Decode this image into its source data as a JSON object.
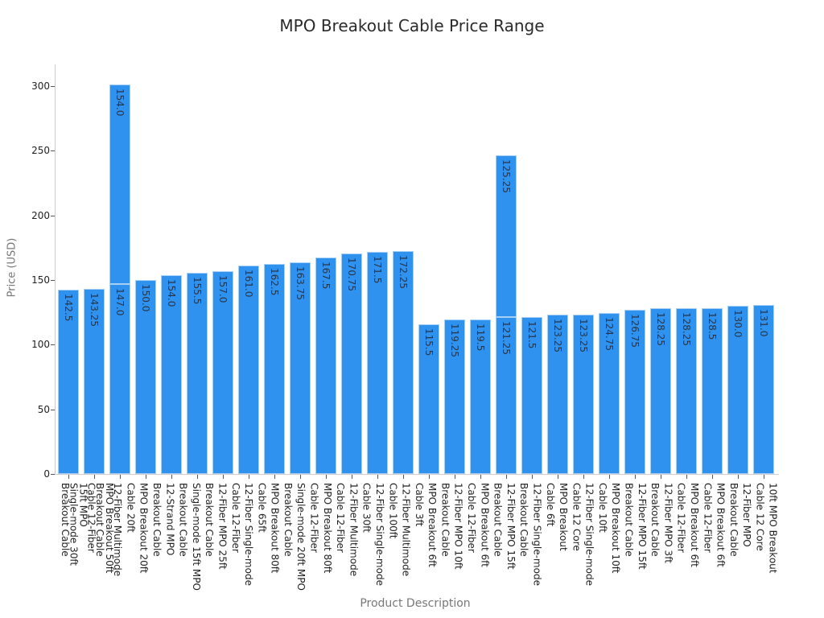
{
  "chart_data": {
    "type": "bar",
    "title": "MPO Breakout Cable Price Range",
    "xlabel": "Product Description",
    "ylabel": "Price (USD)",
    "ylim": [
      0,
      315
    ],
    "yticks": [
      0,
      50,
      100,
      150,
      200,
      250,
      300
    ],
    "grid": false,
    "bar_color": "#3092ef",
    "categories": [
      "Breakout Cable",
      "15ft MPO Single-mode 30ft",
      "Cable 12-Fiber",
      "MPO Breakout Single-mode 50ft",
      "12-Fiber MPO Multimode Breakout Cable",
      "Cable 20ft",
      "MPO Breakout 12-Strand 20ft",
      "12-Strand MPO",
      "Single-mode 15ft MPO",
      "Breakout Cable",
      "12-Fiber MPO 25ft",
      "Cable 12-Fiber",
      "12-Fiber Single-mode",
      "Cable 65ft",
      "MPO Breakout 80ft",
      "Single-mode 20ft MPO",
      "Breakout Cable",
      "Cable 12-Fiber",
      "MPO Breakout 80ft",
      "12-Fiber Multimode",
      "Cable 30ft",
      "12-Fiber Single-mode",
      "Cable 100ft",
      "12-Fiber Multimode",
      "Cable 3ft",
      "MPO Breakout 6ft",
      "Breakout Cable",
      "12-Fiber MPO 10ft",
      "Cable 12-Fiber",
      "MPO Breakout 6ft",
      "Breakout Cable",
      "12-Fiber MPO 15ft",
      "Breakout Cable",
      "12-Fiber Single-mode",
      "Cable 6ft",
      "MPO Breakout",
      "Cable 12 Core",
      "12-Fiber Single-mode",
      "Cable 10ft",
      "MPO Breakout 10ft",
      "Breakout Cable",
      "12-Fiber MPO 15ft",
      "Breakout Cable",
      "12-Fiber MPO 3ft",
      "Cable 12-Fiber",
      "MPO Breakout 6ft",
      "Cable 12-Fiber",
      "MPO Breakout 6ft",
      "Breakout Cable",
      "12-Fiber MPO",
      "Cable 12 Core",
      "10ft MPO Breakout"
    ],
    "bars": [
      {
        "label": "Breakout Cable",
        "values": [
          142.5
        ]
      },
      {
        "label": "Single-mode 30ft / 15ft MPO",
        "values": [
          143.25
        ]
      },
      {
        "label": "Cable 12-Fiber / MPO Breakout 50ft",
        "values": [
          147.0,
          154.0
        ]
      },
      {
        "label": "Breakout Cable / 12-Fiber Multimode",
        "values": [
          150.0
        ]
      },
      {
        "label": "Cable 20ft / MPO Breakout 20ft",
        "values": [
          154.0
        ]
      },
      {
        "label": "Breakout Cable / 12-Strand MPO",
        "values": [
          155.5
        ]
      },
      {
        "label": "Breakout Cable / Single-mode 15ft MPO",
        "values": [
          157.0
        ]
      },
      {
        "label": "12-Fiber MPO 25ft / Cable 12-Fiber",
        "values": [
          161.0
        ]
      },
      {
        "label": "12-Fiber Single-mode / Cable 65ft",
        "values": [
          162.5
        ]
      },
      {
        "label": "MPO Breakout 80ft / Breakout Cable",
        "values": [
          163.75
        ]
      },
      {
        "label": "Single-mode 20ft MPO / Cable 12-Fiber",
        "values": [
          167.5
        ]
      },
      {
        "label": "MPO Breakout 80ft / Cable 12-Fiber",
        "values": [
          170.75
        ]
      },
      {
        "label": "12-Fiber Multimode / Cable 30ft",
        "values": [
          171.5
        ]
      },
      {
        "label": "12-Fiber Single-mode / Cable 100ft",
        "values": [
          172.25
        ]
      },
      {
        "label": "12-Fiber Multimode / Cable 3ft",
        "values": [
          115.5
        ]
      },
      {
        "label": "MPO Breakout 6ft / Breakout Cable",
        "values": [
          119.25
        ]
      },
      {
        "label": "12-Fiber MPO 10ft / Cable 12-Fiber",
        "values": [
          119.5
        ]
      },
      {
        "label": "MPO Breakout 6ft / Breakout Cable",
        "values": [
          121.25,
          125.25
        ]
      },
      {
        "label": "12-Fiber MPO 15ft / Breakout Cable",
        "values": [
          121.5
        ]
      },
      {
        "label": "12-Fiber Single-mode / Cable 6ft",
        "values": [
          123.25
        ]
      },
      {
        "label": "MPO Breakout / Cable 12 Core",
        "values": [
          123.25
        ]
      },
      {
        "label": "12-Fiber Single-mode / Cable 10ft",
        "values": [
          124.75
        ]
      },
      {
        "label": "MPO Breakout 10ft / Breakout Cable",
        "values": [
          126.75
        ]
      },
      {
        "label": "12-Fiber MPO 15ft / Breakout Cable",
        "values": [
          128.25
        ]
      },
      {
        "label": "12-Fiber MPO 3ft / Cable 12-Fiber",
        "values": [
          128.25
        ]
      },
      {
        "label": "MPO Breakout 6ft / Cable 12-Fiber",
        "values": [
          128.5
        ]
      },
      {
        "label": "MPO Breakout 6ft / Breakout Cable",
        "values": [
          130.0
        ]
      },
      {
        "label": "12-Fiber MPO / Cable 12 Core",
        "values": [
          131.0
        ]
      }
    ],
    "last_tick_label": "10ft MPO Breakout"
  },
  "tick_text": [
    "Breakout Cable",
    "15ft MPO\nSingle-mode 30ft",
    "Cable 12-Fiber",
    "MPO Breakout 50ft\nBreakout Cable",
    "12-Fiber Multimode",
    "Cable 20ft",
    "MPO Breakout 20ft",
    "Breakout Cable",
    "12-Strand MPO",
    "Breakout Cable",
    "Single-mode 15ft MPO",
    "Breakout Cable",
    "12-Fiber MPO 25ft",
    "Cable 12-Fiber",
    "12-Fiber Single-mode",
    "Cable 65ft",
    "MPO Breakout 80ft",
    "Breakout Cable",
    "Single-mode 20ft MPO",
    "Cable 12-Fiber",
    "MPO Breakout 80ft",
    "Cable 12-Fiber",
    "12-Fiber Multimode",
    "Cable 30ft",
    "12-Fiber Single-mode",
    "Cable 100ft",
    "12-Fiber Multimode",
    "Cable 3ft",
    "MPO Breakout 6ft",
    "Breakout Cable",
    "12-Fiber MPO 10ft",
    "Cable 12-Fiber",
    "MPO Breakout 6ft",
    "Breakout Cable",
    "12-Fiber MPO 15ft",
    "Breakout Cable",
    "12-Fiber Single-mode",
    "Cable 6ft",
    "MPO Breakout",
    "Cable 12 Core",
    "12-Fiber Single-mode",
    "Cable 10ft",
    "MPO Breakout 10ft",
    "Breakout Cable",
    "12-Fiber MPO 15ft",
    "Breakout Cable",
    "12-Fiber MPO 3ft",
    "Cable 12-Fiber",
    "MPO Breakout 6ft",
    "Cable 12-Fiber",
    "MPO Breakout 6ft",
    "Breakout Cable",
    "12-Fiber MPO",
    "Cable 12 Core",
    "10ft MPO Breakout"
  ]
}
